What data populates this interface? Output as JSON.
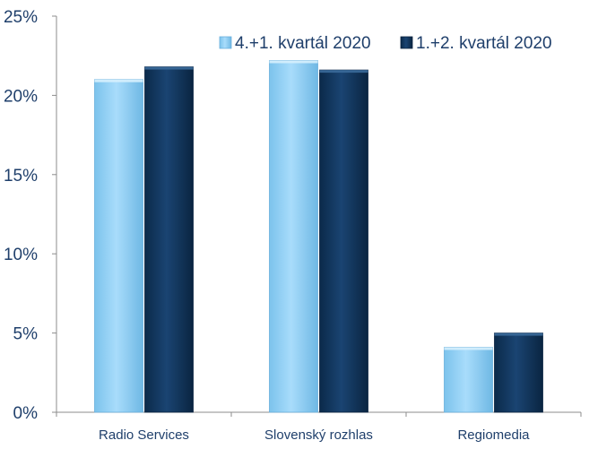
{
  "chart_data": {
    "type": "bar",
    "categories": [
      "Radio Services",
      "Slovenský rozhlas",
      "Regiomedia"
    ],
    "series": [
      {
        "name": "4.+1. kvartál 2020",
        "values": [
          21.0,
          22.2,
          4.1
        ],
        "color": "#8fd0f5"
      },
      {
        "name": "1.+2. kvartál 2020",
        "values": [
          21.8,
          21.6,
          5.0
        ],
        "color": "#12375e"
      }
    ],
    "yticks": [
      "0%",
      "5%",
      "10%",
      "15%",
      "20%",
      "25%"
    ],
    "ylim": [
      0,
      25
    ],
    "unit": "%",
    "grid": false,
    "legend_position": "top-right",
    "xlabel": "",
    "ylabel": ""
  }
}
